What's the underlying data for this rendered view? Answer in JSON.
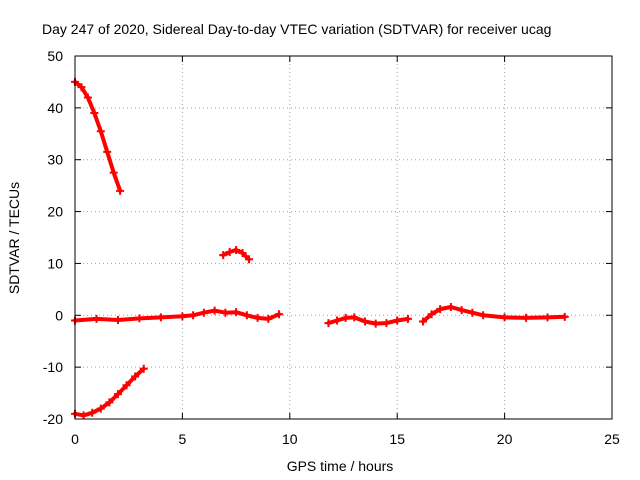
{
  "chart_data": {
    "type": "scatter",
    "title": "Day 247 of 2020, Sidereal Day-to-day VTEC variation (SDTVAR) for receiver ucag",
    "xlabel": "GPS time / hours",
    "ylabel": "SDTVAR / TECUs",
    "xlim": [
      0,
      25
    ],
    "ylim": [
      -20,
      50
    ],
    "xticks": [
      0,
      5,
      10,
      15,
      20,
      25
    ],
    "yticks": [
      -20,
      -10,
      0,
      10,
      20,
      30,
      40,
      50
    ],
    "xtick_labels": [
      "0",
      "5",
      "10",
      "15",
      "20",
      "25"
    ],
    "ytick_labels": [
      "-20",
      "-10",
      "0",
      "10",
      "20",
      "30",
      "40",
      "50"
    ],
    "grid": true,
    "series_color": "#ff0000",
    "series": [
      {
        "name": "arc-1",
        "points": [
          [
            0.0,
            45.0
          ],
          [
            0.3,
            44.0
          ],
          [
            0.6,
            42.0
          ],
          [
            0.9,
            39.0
          ],
          [
            1.2,
            35.5
          ],
          [
            1.5,
            31.5
          ],
          [
            1.8,
            27.5
          ],
          [
            2.1,
            24.0
          ]
        ]
      },
      {
        "name": "arc-2",
        "points": [
          [
            6.9,
            11.6
          ],
          [
            7.2,
            12.2
          ],
          [
            7.5,
            12.6
          ],
          [
            7.8,
            12.0
          ],
          [
            8.1,
            10.8
          ]
        ]
      },
      {
        "name": "arc-3",
        "points": [
          [
            0.0,
            -19.0
          ],
          [
            0.4,
            -19.3
          ],
          [
            0.8,
            -18.8
          ],
          [
            1.2,
            -18.0
          ],
          [
            1.6,
            -16.8
          ],
          [
            2.0,
            -15.2
          ],
          [
            2.4,
            -13.5
          ],
          [
            2.8,
            -11.8
          ],
          [
            3.2,
            -10.3
          ]
        ]
      },
      {
        "name": "arc-4",
        "points": [
          [
            0.0,
            -1.0
          ],
          [
            1.0,
            -0.7
          ],
          [
            2.0,
            -0.9
          ],
          [
            3.0,
            -0.6
          ],
          [
            4.0,
            -0.4
          ],
          [
            5.0,
            -0.2
          ],
          [
            5.5,
            0.0
          ],
          [
            6.0,
            0.5
          ],
          [
            6.5,
            0.9
          ],
          [
            7.0,
            0.5
          ],
          [
            7.5,
            0.6
          ],
          [
            8.0,
            0.0
          ],
          [
            8.5,
            -0.5
          ],
          [
            9.0,
            -0.7
          ],
          [
            9.5,
            0.2
          ]
        ]
      },
      {
        "name": "arc-5",
        "points": [
          [
            11.8,
            -1.5
          ],
          [
            12.2,
            -1.0
          ],
          [
            12.6,
            -0.5
          ],
          [
            13.0,
            -0.4
          ],
          [
            13.5,
            -1.2
          ],
          [
            14.0,
            -1.6
          ],
          [
            14.5,
            -1.5
          ],
          [
            15.0,
            -1.0
          ],
          [
            15.5,
            -0.7
          ]
        ]
      },
      {
        "name": "arc-6",
        "points": [
          [
            16.2,
            -1.2
          ],
          [
            16.6,
            0.2
          ],
          [
            17.0,
            1.2
          ],
          [
            17.5,
            1.6
          ],
          [
            18.0,
            1.0
          ],
          [
            18.5,
            0.5
          ],
          [
            19.0,
            0.0
          ],
          [
            20.0,
            -0.4
          ],
          [
            21.0,
            -0.5
          ],
          [
            22.0,
            -0.4
          ],
          [
            22.8,
            -0.3
          ]
        ]
      }
    ]
  }
}
